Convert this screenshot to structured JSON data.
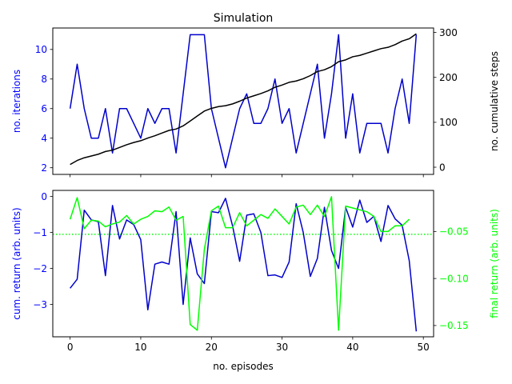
{
  "chart_data": [
    {
      "type": "line",
      "title": "Simulation",
      "xlabel": "",
      "ylabel": "no. iterations",
      "ylabel_right": "no. cumulative steps",
      "xlim": [
        -2.45,
        51.45
      ],
      "ylim": [
        1.55,
        11.45
      ],
      "ylim_right": [
        -16,
        310
      ],
      "xticks": [
        0,
        10,
        20,
        30,
        40,
        50
      ],
      "yticks": [
        2,
        4,
        6,
        8,
        10
      ],
      "yticks_right": [
        0,
        100,
        200,
        300
      ],
      "colors": {
        "left": "#0000ff",
        "right": "#000000"
      },
      "series": [
        {
          "axis": "left",
          "color": "#0000cc",
          "x": [
            0,
            1,
            2,
            3,
            4,
            5,
            6,
            7,
            8,
            9,
            10,
            11,
            12,
            13,
            14,
            15,
            16,
            17,
            18,
            19,
            20,
            21,
            22,
            23,
            24,
            25,
            26,
            27,
            28,
            29,
            30,
            31,
            32,
            33,
            34,
            35,
            36,
            37,
            38,
            39,
            40,
            41,
            42,
            43,
            44,
            45,
            46,
            47,
            48,
            49
          ],
          "values": [
            6,
            9,
            6,
            4,
            4,
            6,
            3,
            6,
            6,
            5,
            4,
            6,
            5,
            6,
            6,
            3,
            7,
            11,
            11,
            11,
            6,
            4,
            2,
            4,
            6,
            7,
            5,
            5,
            6,
            8,
            5,
            6,
            3,
            5,
            7,
            9,
            4,
            7,
            11,
            4,
            7,
            3,
            5,
            5,
            5,
            3,
            6,
            8,
            5,
            11
          ]
        },
        {
          "axis": "right",
          "color": "#000000",
          "x": [
            0,
            1,
            2,
            3,
            4,
            5,
            6,
            7,
            8,
            9,
            10,
            11,
            12,
            13,
            14,
            15,
            16,
            17,
            18,
            19,
            20,
            21,
            22,
            23,
            24,
            25,
            26,
            27,
            28,
            29,
            30,
            31,
            32,
            33,
            34,
            35,
            36,
            37,
            38,
            39,
            40,
            41,
            42,
            43,
            44,
            45,
            46,
            47,
            48,
            49
          ],
          "values": [
            6,
            15,
            21,
            25,
            29,
            35,
            38,
            44,
            50,
            55,
            59,
            65,
            70,
            76,
            82,
            85,
            92,
            103,
            114,
            125,
            131,
            135,
            137,
            141,
            147,
            154,
            159,
            164,
            170,
            178,
            183,
            189,
            192,
            197,
            204,
            213,
            217,
            224,
            235,
            239,
            246,
            249,
            254,
            259,
            264,
            267,
            273,
            281,
            286,
            297
          ]
        }
      ]
    },
    {
      "type": "line",
      "xlabel": "no. episodes",
      "ylabel": "cum. return (arb. units)",
      "ylabel_right": "final return (arb. units)",
      "xlim": [
        -2.45,
        51.45
      ],
      "ylim": [
        -3.9,
        0.17
      ],
      "ylim_right": [
        -0.162,
        -0.0063
      ],
      "xticks": [
        0,
        10,
        20,
        30,
        40,
        50
      ],
      "yticks": [
        0,
        -1,
        -2,
        -3
      ],
      "yticks_right": [
        -0.05,
        -0.1,
        -0.15
      ],
      "ytick_labels": [
        "0",
        "−1",
        "−2",
        "−3"
      ],
      "ytick_labels_right": [
        "−0.05",
        "−0.10",
        "−0.15"
      ],
      "colors": {
        "left": "#0000ff",
        "right": "#00ff00"
      },
      "hline": {
        "axis": "left",
        "y": -1.05,
        "style": "dotted",
        "color": "#00ff00"
      },
      "series": [
        {
          "axis": "left",
          "color": "#0000cc",
          "x": [
            0,
            1,
            2,
            3,
            4,
            5,
            6,
            7,
            8,
            9,
            10,
            11,
            12,
            13,
            14,
            15,
            16,
            17,
            18,
            19,
            20,
            21,
            22,
            23,
            24,
            25,
            26,
            27,
            28,
            29,
            30,
            31,
            32,
            33,
            34,
            35,
            36,
            37,
            38,
            39,
            40,
            41,
            42,
            43,
            44,
            45,
            46,
            47,
            48,
            49
          ],
          "values": [
            -2.55,
            -2.3,
            -0.38,
            -0.65,
            -0.7,
            -2.2,
            -0.25,
            -1.18,
            -0.65,
            -0.78,
            -1.2,
            -3.15,
            -1.88,
            -1.82,
            -1.88,
            -0.42,
            -3.0,
            -1.15,
            -2.15,
            -2.42,
            -0.42,
            -0.45,
            -0.05,
            -0.82,
            -1.8,
            -0.52,
            -0.48,
            -1.0,
            -2.2,
            -2.18,
            -2.25,
            -1.82,
            -0.2,
            -1.0,
            -2.22,
            -1.72,
            -0.3,
            -1.5,
            -2.0,
            -0.3,
            -0.85,
            -0.1,
            -0.72,
            -0.55,
            -1.25,
            -0.25,
            -0.62,
            -0.8,
            -1.78,
            -3.75
          ]
        },
        {
          "axis": "right",
          "color": "#00ff00",
          "x": [
            0,
            1,
            2,
            3,
            4,
            5,
            6,
            7,
            8,
            9,
            10,
            11,
            12,
            13,
            14,
            15,
            16,
            17,
            18,
            19,
            20,
            21,
            22,
            23,
            24,
            25,
            26,
            27,
            28,
            29,
            30,
            31,
            32,
            33,
            34,
            35,
            36,
            37,
            38,
            39,
            40,
            41,
            42,
            43,
            44,
            45,
            46,
            47,
            48
          ],
          "values": [
            -0.037,
            -0.014,
            -0.047,
            -0.038,
            -0.039,
            -0.045,
            -0.042,
            -0.04,
            -0.033,
            -0.042,
            -0.037,
            -0.034,
            -0.028,
            -0.029,
            -0.024,
            -0.038,
            -0.034,
            -0.149,
            -0.155,
            -0.069,
            -0.028,
            -0.023,
            -0.046,
            -0.046,
            -0.03,
            -0.044,
            -0.038,
            -0.032,
            -0.036,
            -0.026,
            -0.034,
            -0.042,
            -0.024,
            -0.022,
            -0.032,
            -0.022,
            -0.034,
            -0.013,
            -0.155,
            -0.023,
            -0.025,
            -0.027,
            -0.029,
            -0.034,
            -0.05,
            -0.05,
            -0.044,
            -0.044,
            -0.037
          ]
        }
      ]
    }
  ]
}
